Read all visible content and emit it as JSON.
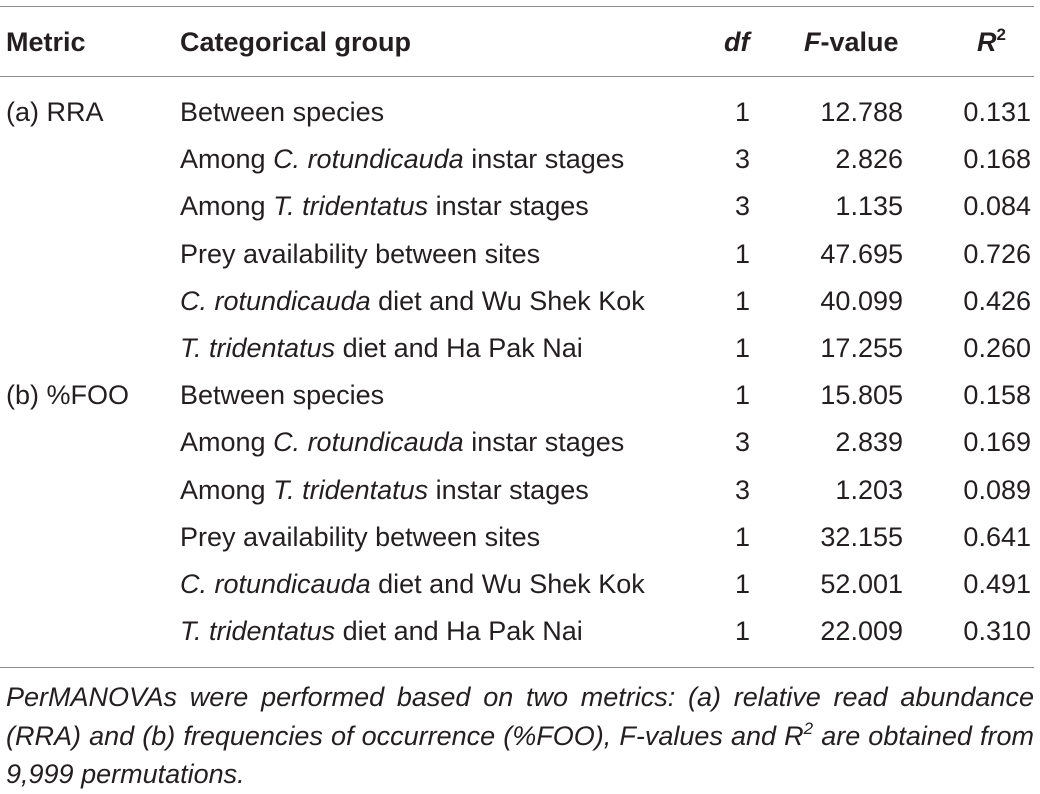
{
  "table": {
    "headers": {
      "metric": "Metric",
      "group": "Categorical group",
      "df": "df",
      "f_italic": "F",
      "f_rest": "-value",
      "r2_base": "R",
      "r2_sup": "2"
    },
    "rows": [
      {
        "metric": "(a) RRA",
        "g_pre": "Between species",
        "g_it": "",
        "g_post": "",
        "df": "1",
        "f": "12.788",
        "r2": "0.131"
      },
      {
        "metric": "",
        "g_pre": "Among ",
        "g_it": "C. rotundicauda",
        "g_post": " instar stages",
        "df": "3",
        "f": "2.826",
        "r2": "0.168"
      },
      {
        "metric": "",
        "g_pre": "Among ",
        "g_it": "T. tridentatus",
        "g_post": " instar stages",
        "df": "3",
        "f": "1.135",
        "r2": "0.084"
      },
      {
        "metric": "",
        "g_pre": "Prey availability between sites",
        "g_it": "",
        "g_post": "",
        "df": "1",
        "f": "47.695",
        "r2": "0.726"
      },
      {
        "metric": "",
        "g_pre": "",
        "g_it": "C. rotundicauda",
        "g_post": " diet and Wu Shek Kok",
        "df": "1",
        "f": "40.099",
        "r2": "0.426"
      },
      {
        "metric": "",
        "g_pre": "",
        "g_it": "T. tridentatus",
        "g_post": " diet and Ha Pak Nai",
        "df": "1",
        "f": "17.255",
        "r2": "0.260"
      },
      {
        "metric": "(b) %FOO",
        "g_pre": "Between species",
        "g_it": "",
        "g_post": "",
        "df": "1",
        "f": "15.805",
        "r2": "0.158"
      },
      {
        "metric": "",
        "g_pre": "Among ",
        "g_it": "C. rotundicauda",
        "g_post": " instar stages",
        "df": "3",
        "f": "2.839",
        "r2": "0.169"
      },
      {
        "metric": "",
        "g_pre": "Among ",
        "g_it": "T. tridentatus",
        "g_post": " instar stages",
        "df": "3",
        "f": "1.203",
        "r2": "0.089"
      },
      {
        "metric": "",
        "g_pre": "Prey availability between sites",
        "g_it": "",
        "g_post": "",
        "df": "1",
        "f": "32.155",
        "r2": "0.641"
      },
      {
        "metric": "",
        "g_pre": "",
        "g_it": "C. rotundicauda",
        "g_post": " diet and Wu Shek Kok",
        "df": "1",
        "f": "52.001",
        "r2": "0.491"
      },
      {
        "metric": "",
        "g_pre": "",
        "g_it": "T. tridentatus",
        "g_post": " diet and Ha Pak Nai",
        "df": "1",
        "f": "22.009",
        "r2": "0.310"
      }
    ]
  },
  "footnote": {
    "before_sup": "PerMANOVAs were performed based on two metrics: (a) relative read abundance (RRA) and (b) frequencies of occurrence (%FOO), F-values and R",
    "sup": "2",
    "after_sup": " are obtained from 9,999 permutations."
  }
}
